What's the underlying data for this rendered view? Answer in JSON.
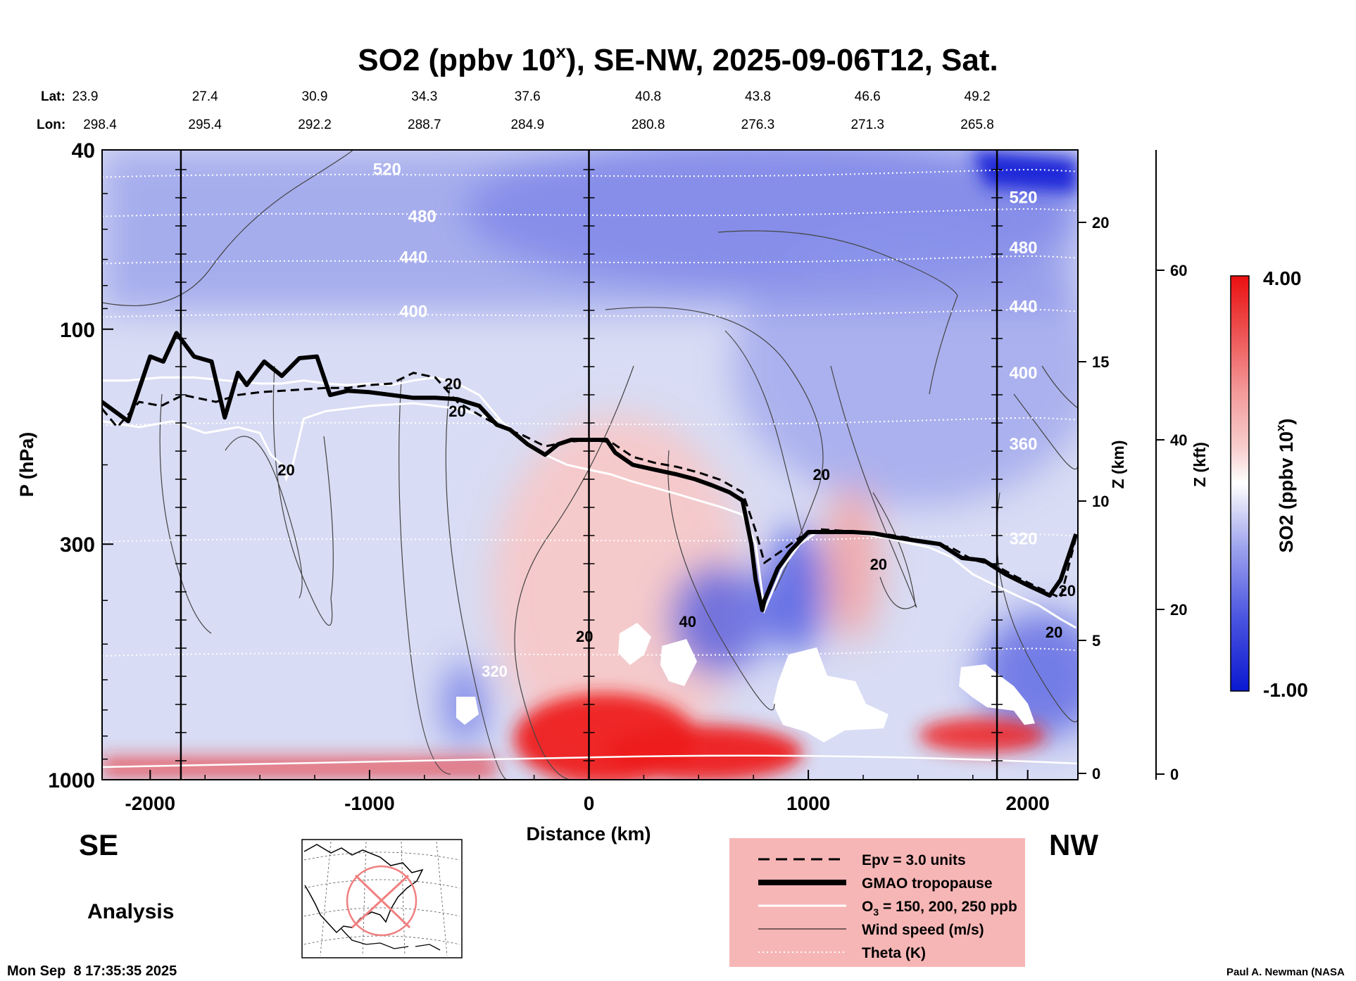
{
  "figure": {
    "title_main": "SO2 (ppbv 10",
    "title_sup": "x",
    "title_rest": "), SE-NW, 2025-09-06T12, Sat.",
    "dir_left": "SE",
    "dir_right": "NW",
    "mode": "Analysis",
    "timestamp": "Mon Sep  8 17:35:35 2025",
    "credit": "Paul A. Newman (NASA"
  },
  "colors": {
    "bg_mid": "#d8dcf4",
    "upper_blue": "#7d86e8",
    "deep_blue": "#1a28d8",
    "red": "#ee2020",
    "pink": "#f7c8c8",
    "legend_bg": "#f7b6b6"
  },
  "chart_data": {
    "type": "cross-section",
    "quantity": "SO2",
    "xlabel": "Distance (km)",
    "ylabel": "P (hPa)",
    "xlim": [
      -2220,
      2220
    ],
    "x_ticks": [
      -2000,
      -1000,
      0,
      1000,
      2000
    ],
    "x_tick_labels": [
      "-2000",
      "-1000",
      "0",
      "1000",
      "2000"
    ],
    "ylim": [
      1000,
      40
    ],
    "y_ticks": [
      40,
      100,
      300,
      1000
    ],
    "y_tick_labels": [
      "40",
      "100",
      "300",
      "1000"
    ],
    "z_km_label": "Z (km)",
    "z_km_ticks": [
      "0",
      "5",
      "10",
      "15",
      "20"
    ],
    "z_kft_label": "Z (kft)",
    "z_kft_ticks": [
      "0",
      "20",
      "40",
      "60"
    ],
    "lat_label": "Lat:",
    "lon_label": "Lon:",
    "lat_values": [
      "23.9",
      "27.4",
      "30.9",
      "34.3",
      "37.6",
      "40.8",
      "43.8",
      "46.6",
      "49.2"
    ],
    "lon_values": [
      "298.4",
      "295.4",
      "292.2",
      "288.7",
      "284.9",
      "280.8",
      "276.3",
      "271.3",
      "265.8"
    ],
    "latlon_x_km": [
      -2220,
      -1750,
      -1250,
      -750,
      -280,
      270,
      770,
      1270,
      1770
    ],
    "vertical_lines_km": [
      -1860,
      0,
      1860
    ],
    "tropopause": {
      "x": [
        -2220,
        -2100,
        -2000,
        -1940,
        -1880,
        -1800,
        -1720,
        -1660,
        -1600,
        -1560,
        -1480,
        -1400,
        -1320,
        -1240,
        -1180,
        -1100,
        -1000,
        -900,
        -800,
        -700,
        -600,
        -500,
        -420,
        -360,
        -280,
        -200,
        -140,
        -80,
        0,
        80,
        120,
        200,
        300,
        400,
        480,
        560,
        640,
        700,
        740,
        760,
        790,
        800,
        860,
        920,
        1000,
        1100,
        1200,
        1300,
        1400,
        1500,
        1600,
        1700,
        1800,
        1900,
        2000,
        2100,
        2150,
        2220
      ],
      "p": [
        145,
        160,
        115,
        118,
        102,
        115,
        118,
        157,
        125,
        133,
        118,
        127,
        116,
        115,
        140,
        137,
        138,
        140,
        142,
        142,
        143,
        148,
        163,
        167,
        180,
        190,
        180,
        176,
        176,
        176,
        188,
        200,
        205,
        210,
        215,
        222,
        230,
        240,
        300,
        360,
        420,
        400,
        340,
        310,
        282,
        282,
        282,
        284,
        290,
        295,
        300,
        322,
        326,
        350,
        370,
        390,
        360,
        285
      ]
    },
    "epv_line": {
      "x": [
        -2220,
        -2150,
        -2050,
        -1950,
        -1850,
        -1700,
        -1600,
        -1500,
        -1400,
        -1300,
        -1200,
        -1100,
        -1000,
        -900,
        -800,
        -700,
        -600,
        -500,
        -400,
        -300,
        -200,
        -100,
        0,
        100,
        200,
        300,
        400,
        500,
        600,
        700,
        760,
        800,
        880,
        960,
        1050,
        1150,
        1250,
        1350,
        1450,
        1550,
        1650,
        1750,
        1850,
        1950,
        2050,
        2150,
        2220
      ],
      "p": [
        150,
        165,
        145,
        148,
        140,
        145,
        140,
        138,
        137,
        136,
        135,
        135,
        133,
        132,
        125,
        128,
        145,
        155,
        165,
        172,
        182,
        178,
        176,
        178,
        192,
        198,
        202,
        208,
        216,
        230,
        280,
        330,
        310,
        290,
        278,
        280,
        282,
        285,
        290,
        298,
        305,
        325,
        334,
        355,
        375,
        395,
        290
      ]
    },
    "o3_line": {
      "x": [
        -2220,
        -2100,
        -1950,
        -1800,
        -1650,
        -1500,
        -1400,
        -1300,
        -1200,
        -1100,
        -1000,
        -900,
        -800,
        -700,
        -600,
        -500,
        -400,
        -300,
        -200,
        -100,
        0,
        100,
        200,
        300,
        400,
        500,
        600,
        700,
        760,
        800,
        880,
        960,
        1050,
        1150,
        1250,
        1350,
        1450,
        1550,
        1650,
        1750,
        1850,
        1950,
        2050,
        2150,
        2220
      ],
      "p": [
        130,
        130,
        128,
        128,
        130,
        132,
        132,
        130,
        132,
        133,
        132,
        133,
        130,
        128,
        132,
        140,
        160,
        175,
        190,
        200,
        205,
        210,
        218,
        225,
        232,
        240,
        248,
        258,
        300,
        420,
        340,
        300,
        280,
        282,
        285,
        290,
        298,
        305,
        320,
        350,
        370,
        390,
        410,
        440,
        460
      ]
    },
    "o3_line2": {
      "x": [
        -2220,
        -2050,
        -1900,
        -1750,
        -1600,
        -1500,
        -1450,
        -1400,
        -1380,
        -1350,
        -1300,
        -1200,
        -1100,
        -1000,
        -900,
        -800,
        -700,
        -600,
        -500,
        -400
      ],
      "p": [
        160,
        165,
        160,
        170,
        165,
        170,
        190,
        200,
        215,
        200,
        158,
        152,
        150,
        148,
        147,
        146,
        148,
        150,
        155,
        160
      ]
    },
    "theta_levels": [
      "520",
      "480",
      "440",
      "400",
      "360",
      "320"
    ],
    "theta_labels_left": [
      "520",
      "480",
      "440",
      "400"
    ],
    "theta_labels_right": [
      "520",
      "480",
      "440",
      "400",
      "360",
      "320"
    ],
    "theta_label_320": "320",
    "wind_labels": [
      "20",
      "20",
      "20",
      "40",
      "20",
      "20",
      "20",
      "20",
      "20"
    ],
    "legend": [
      {
        "label": "Epv = 3.0 units",
        "style": "dashed"
      },
      {
        "label": "GMAO tropopause",
        "style": "thick"
      },
      {
        "label": "O",
        "sub": "3",
        "rest": " = 150, 200, 250 ppb",
        "style": "white"
      },
      {
        "label": "Wind speed (m/s)",
        "style": "thin"
      },
      {
        "label": "Theta (K)",
        "style": "dotted"
      }
    ],
    "colorbar": {
      "label": "SO2 (ppbv 10",
      "label_sup": "x",
      "label_end": ")",
      "max_label": "4.00",
      "min_label": "-1.00",
      "range": [
        -1.0,
        4.0
      ]
    }
  }
}
